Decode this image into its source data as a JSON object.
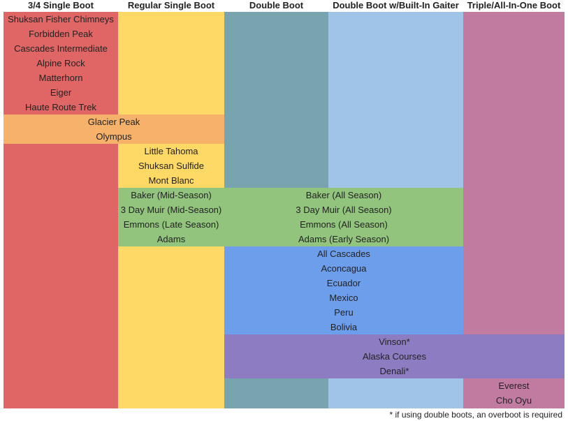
{
  "headers": [
    "3/4 Single Boot",
    "Regular Single Boot",
    "Double Boot",
    "Double Boot w/Built-In Gaiter",
    "Triple/All-In-One Boot"
  ],
  "groups": [
    {
      "items": [
        "Shuksan Fisher Chimneys",
        "Forbidden Peak",
        "Cascades Intermediate",
        "Alpine Rock",
        "Matterhorn",
        "Eiger",
        "Haute Route Trek"
      ]
    },
    {
      "items": [
        "Glacier Peak",
        "Olympus"
      ]
    },
    {
      "items": [
        "Little Tahoma",
        "Shuksan Sulfide",
        "Mont Blanc"
      ]
    },
    {
      "items": [
        "Baker (Mid-Season)",
        "3 Day Muir (Mid-Season)",
        "Emmons (Late Season)",
        "Adams"
      ]
    },
    {
      "items": [
        "Baker (All Season)",
        "3 Day Muir (All Season)",
        "Emmons (All Season)",
        "Adams (Early Season)"
      ]
    },
    {
      "items": [
        "All Cascades",
        "Aconcagua",
        "Ecuador",
        "Mexico",
        "Peru",
        "Bolivia"
      ]
    },
    {
      "items": [
        "Vinson*",
        "Alaska Courses",
        "Denali*"
      ]
    },
    {
      "items": [
        "Everest",
        "Cho Oyu"
      ]
    }
  ],
  "footnote": "* if using double boots, an overboot is required"
}
